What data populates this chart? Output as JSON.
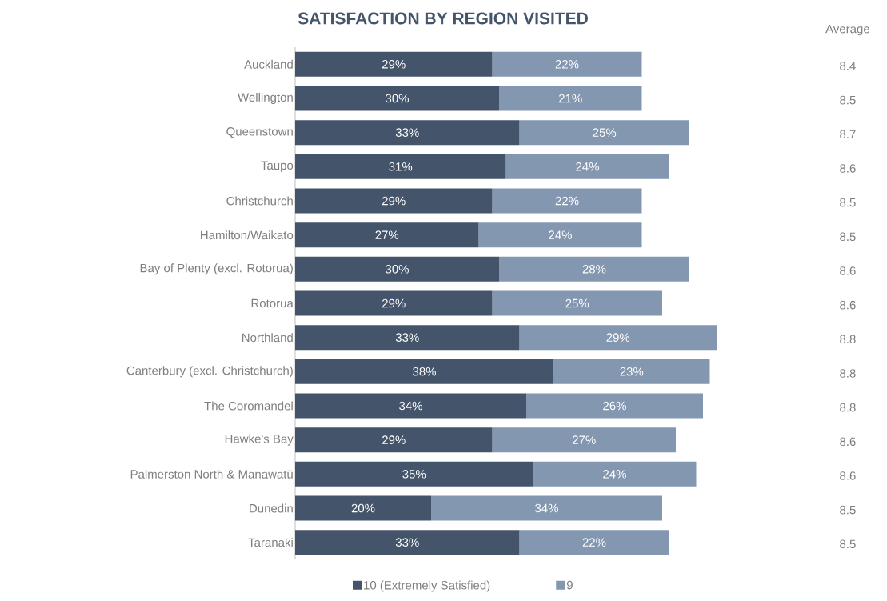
{
  "chart_data": {
    "type": "bar",
    "orientation": "horizontal",
    "stacked": true,
    "title": "SATISFACTION BY REGION VISITED",
    "categories": [
      "Auckland",
      "Wellington",
      "Queenstown",
      "Taupō",
      "Christchurch",
      "Hamilton/Waikato",
      "Bay of Plenty (excl. Rotorua)",
      "Rotorua",
      "Northland",
      "Canterbury (excl. Christchurch)",
      "The Coromandel",
      "Hawke's Bay",
      "Palmerston North & Manawatū",
      "Dunedin",
      "Taranaki"
    ],
    "series": [
      {
        "name": "10 (Extremely Satisfied)",
        "color": "#44546a",
        "values": [
          29,
          30,
          33,
          31,
          29,
          27,
          30,
          29,
          33,
          38,
          34,
          29,
          35,
          20,
          33
        ],
        "value_labels": [
          "29%",
          "30%",
          "33%",
          "31%",
          "29%",
          "27%",
          "30%",
          "29%",
          "33%",
          "38%",
          "34%",
          "29%",
          "35%",
          "20%",
          "33%"
        ]
      },
      {
        "name": "9",
        "color": "#8497b0",
        "values": [
          22,
          21,
          25,
          24,
          22,
          24,
          28,
          25,
          29,
          23,
          26,
          27,
          24,
          34,
          22
        ],
        "value_labels": [
          "22%",
          "21%",
          "25%",
          "24%",
          "22%",
          "24%",
          "28%",
          "25%",
          "29%",
          "23%",
          "26%",
          "27%",
          "24%",
          "34%",
          "22%"
        ]
      }
    ],
    "annotations": [
      "Average",
      "8.4",
      "8.5",
      "8.7",
      "8.6",
      "8.5",
      "8.5",
      "8.6",
      "8.6",
      "8.8",
      "8.8",
      "8.8",
      "8.6",
      "8.6",
      "8.5",
      "8.5"
    ],
    "legend": "bottom"
  }
}
